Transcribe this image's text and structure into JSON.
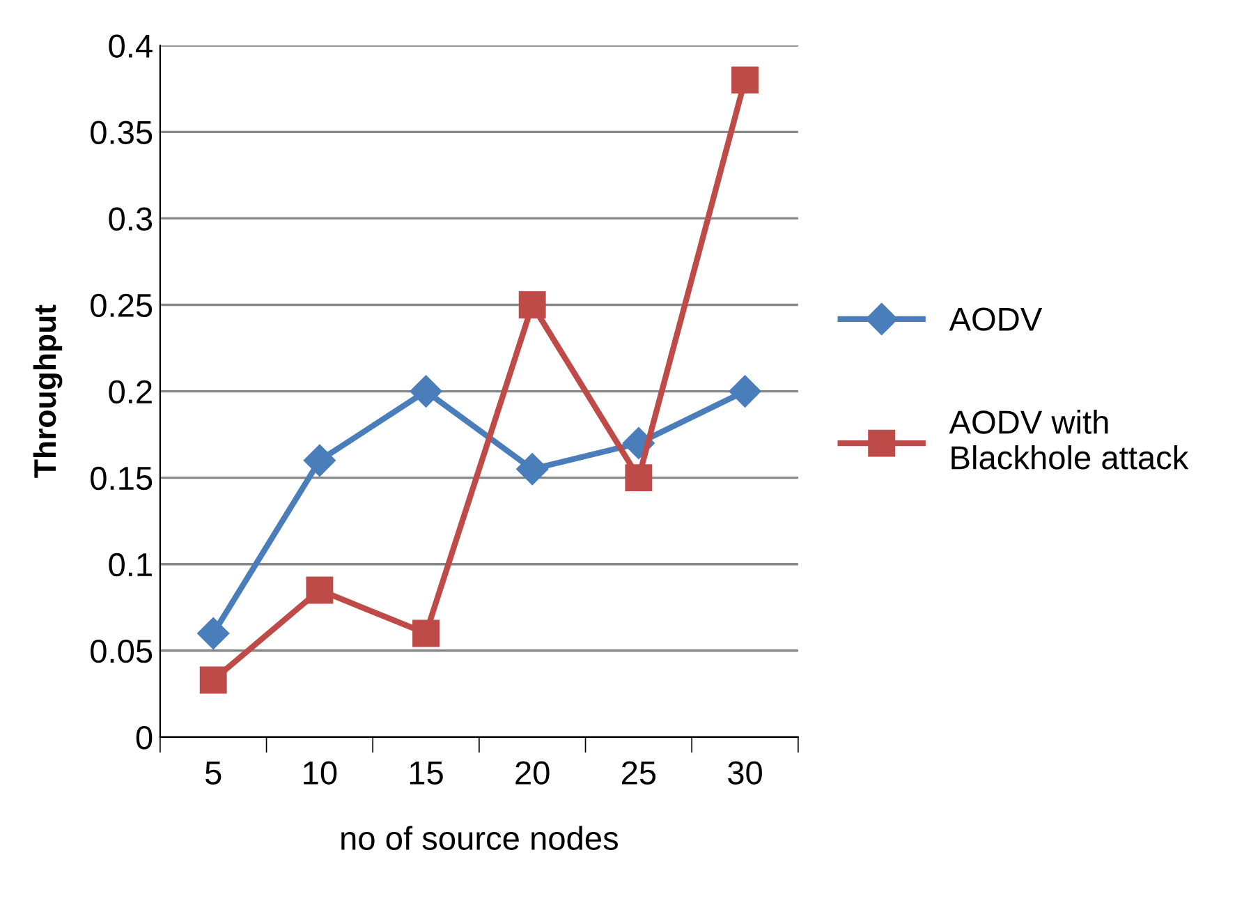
{
  "chart_data": {
    "type": "line",
    "xlabel": "no of source nodes",
    "ylabel": "Throughput",
    "categories": [
      "5",
      "10",
      "15",
      "20",
      "25",
      "30"
    ],
    "series": [
      {
        "name": "AODV",
        "color": "#4a7ebb",
        "marker": "diamond",
        "values": [
          0.06,
          0.16,
          0.2,
          0.155,
          0.17,
          0.2
        ]
      },
      {
        "name": "AODV with Blackhole attack",
        "color": "#be4b48",
        "marker": "square",
        "values": [
          0.033,
          0.085,
          0.06,
          0.25,
          0.15,
          0.38
        ]
      }
    ],
    "ylim": [
      0,
      0.4
    ],
    "yticks": [
      0,
      0.05,
      0.1,
      0.15,
      0.2,
      0.25,
      0.3,
      0.35,
      0.4
    ],
    "grid": "y",
    "legend": "right",
    "line_style": "solid"
  }
}
